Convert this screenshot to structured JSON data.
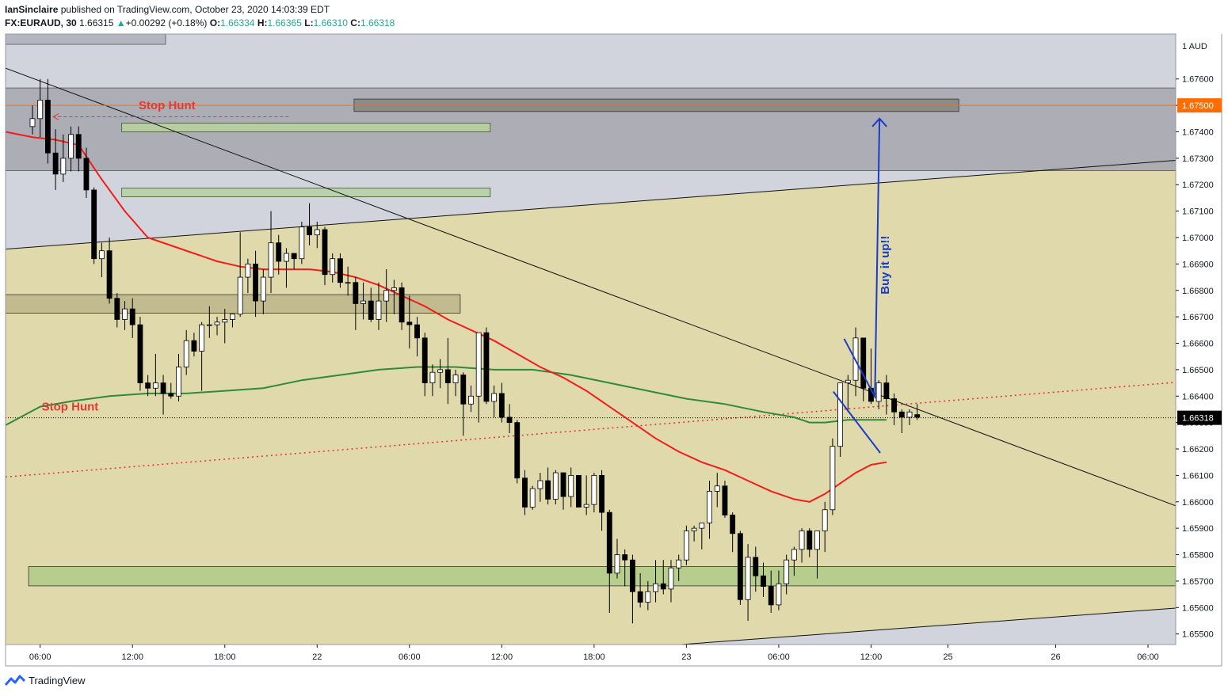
{
  "header": {
    "author": "IanSinclaire",
    "published_text": "published on TradingView.com, October 23, 2020 14:03:39 EDT",
    "symbol": "FX:EURAUD, 30",
    "last_price": "1.66315",
    "change_arrow": "▲",
    "change": "+0.00292 (+0.18%)",
    "o_label": "O:",
    "o_value": "1.66334",
    "h_label": "H:",
    "h_value": "1.66365",
    "l_label": "L:",
    "l_value": "1.66310",
    "c_label": "C:",
    "c_value": "1.66318"
  },
  "footer": {
    "brand": "TradingView"
  },
  "colors": {
    "background": "#d1d4dc",
    "channel": "#e0d9ab",
    "bull": "#ffffff",
    "bear": "#000000",
    "ema_fast": "#f21c1c",
    "ema_slow": "#2e8b3a",
    "annotation_red": "#e53935",
    "annotation_blue": "#1a3cc9"
  },
  "chart_data": {
    "type": "candlestick",
    "currency_label": "1 AUD",
    "y_ticks": [
      "1.67600",
      "1.67500",
      "1.67400",
      "1.67300",
      "1.67200",
      "1.67100",
      "1.67000",
      "1.66900",
      "1.66800",
      "1.66700",
      "1.66600",
      "1.66500",
      "1.66400",
      "1.66300",
      "1.66200",
      "1.66100",
      "1.66000",
      "1.65900",
      "1.65800",
      "1.65700",
      "1.65600",
      "1.65500"
    ],
    "ylim": [
      1.6546,
      1.6777
    ],
    "x_ticks": [
      {
        "label": "06:00",
        "bar": 1
      },
      {
        "label": "12:00",
        "bar": 13
      },
      {
        "label": "18:00",
        "bar": 25
      },
      {
        "label": "22",
        "bar": 37
      },
      {
        "label": "06:00",
        "bar": 49
      },
      {
        "label": "12:00",
        "bar": 61
      },
      {
        "label": "18:00",
        "bar": 73
      },
      {
        "label": "23",
        "bar": 85
      },
      {
        "label": "06:00",
        "bar": 97
      },
      {
        "label": "12:00",
        "bar": 109
      },
      {
        "label": "25",
        "bar": 119
      },
      {
        "label": "26",
        "bar": 133
      },
      {
        "label": "06:00",
        "bar": 145
      }
    ],
    "xlim": [
      -3.5,
      148.6
    ],
    "price_labels": [
      {
        "value": 1.675,
        "text": "1.67500",
        "color": "#ff6d00"
      },
      {
        "value": 1.66318,
        "text": "1.66318",
        "color": "#000000"
      }
    ],
    "candles": [
      [
        1.6742,
        1.675,
        1.6739,
        1.6745
      ],
      [
        1.6745,
        1.676,
        1.6738,
        1.6752
      ],
      [
        1.6752,
        1.676,
        1.6728,
        1.6732
      ],
      [
        1.6732,
        1.6741,
        1.6718,
        1.6724
      ],
      [
        1.6724,
        1.6739,
        1.6721,
        1.673
      ],
      [
        1.673,
        1.6742,
        1.6725,
        1.6739
      ],
      [
        1.6739,
        1.6742,
        1.6725,
        1.673
      ],
      [
        1.673,
        1.6734,
        1.6715,
        1.6718
      ],
      [
        1.6718,
        1.6719,
        1.669,
        1.6692
      ],
      [
        1.6692,
        1.6698,
        1.6685,
        1.6695
      ],
      [
        1.6695,
        1.67,
        1.6675,
        1.6677
      ],
      [
        1.6677,
        1.6679,
        1.6666,
        1.6669
      ],
      [
        1.6669,
        1.6676,
        1.6665,
        1.6673
      ],
      [
        1.6673,
        1.6677,
        1.6662,
        1.6667
      ],
      [
        1.6667,
        1.667,
        1.6642,
        1.6645
      ],
      [
        1.6645,
        1.6648,
        1.664,
        1.6643
      ],
      [
        1.6643,
        1.6656,
        1.664,
        1.6645
      ],
      [
        1.6645,
        1.6648,
        1.6633,
        1.6641
      ],
      [
        1.6641,
        1.6645,
        1.6639,
        1.664
      ],
      [
        1.664,
        1.6656,
        1.6638,
        1.6651
      ],
      [
        1.6651,
        1.6665,
        1.6648,
        1.6661
      ],
      [
        1.6661,
        1.6664,
        1.6655,
        1.6657
      ],
      [
        1.6657,
        1.6668,
        1.6642,
        1.6667
      ],
      [
        1.6667,
        1.6674,
        1.6662,
        1.6667
      ],
      [
        1.6667,
        1.667,
        1.6663,
        1.6668
      ],
      [
        1.6668,
        1.6673,
        1.666,
        1.6669
      ],
      [
        1.6669,
        1.6671,
        1.6666,
        1.6671
      ],
      [
        1.6671,
        1.6702,
        1.667,
        1.6685
      ],
      [
        1.6685,
        1.6692,
        1.6679,
        1.669
      ],
      [
        1.669,
        1.6695,
        1.667,
        1.6676
      ],
      [
        1.6676,
        1.6688,
        1.6671,
        1.6685
      ],
      [
        1.6685,
        1.671,
        1.6679,
        1.6698
      ],
      [
        1.6698,
        1.6701,
        1.6686,
        1.6691
      ],
      [
        1.6691,
        1.6696,
        1.6681,
        1.6694
      ],
      [
        1.6694,
        1.6694,
        1.6688,
        1.6692
      ],
      [
        1.6692,
        1.6706,
        1.669,
        1.6704
      ],
      [
        1.6704,
        1.6713,
        1.6697,
        1.6701
      ],
      [
        1.6701,
        1.6706,
        1.6696,
        1.6703
      ],
      [
        1.6703,
        1.6704,
        1.6682,
        1.6686
      ],
      [
        1.6686,
        1.6694,
        1.6683,
        1.6692
      ],
      [
        1.6692,
        1.6694,
        1.6681,
        1.6683
      ],
      [
        1.6683,
        1.6689,
        1.6678,
        1.6683
      ],
      [
        1.6683,
        1.6685,
        1.6665,
        1.6675
      ],
      [
        1.6675,
        1.6683,
        1.6669,
        1.6676
      ],
      [
        1.6676,
        1.6681,
        1.6668,
        1.6669
      ],
      [
        1.6669,
        1.6683,
        1.6665,
        1.6676
      ],
      [
        1.6676,
        1.6688,
        1.6668,
        1.668
      ],
      [
        1.668,
        1.6684,
        1.6671,
        1.6681
      ],
      [
        1.6681,
        1.6683,
        1.6665,
        1.6668
      ],
      [
        1.6668,
        1.6678,
        1.6658,
        1.6667
      ],
      [
        1.6667,
        1.667,
        1.6655,
        1.6662
      ],
      [
        1.6662,
        1.6664,
        1.664,
        1.6645
      ],
      [
        1.6645,
        1.6652,
        1.664,
        1.6649
      ],
      [
        1.6649,
        1.6654,
        1.6643,
        1.665
      ],
      [
        1.665,
        1.6662,
        1.6637,
        1.6645
      ],
      [
        1.6645,
        1.665,
        1.664,
        1.6648
      ],
      [
        1.6648,
        1.6649,
        1.6625,
        1.6637
      ],
      [
        1.6637,
        1.6644,
        1.6634,
        1.664
      ],
      [
        1.664,
        1.6664,
        1.663,
        1.6664
      ],
      [
        1.6664,
        1.6666,
        1.6637,
        1.6638
      ],
      [
        1.6638,
        1.6644,
        1.6632,
        1.6641
      ],
      [
        1.6641,
        1.6645,
        1.663,
        1.6632
      ],
      [
        1.6632,
        1.6637,
        1.6626,
        1.663
      ],
      [
        1.663,
        1.6631,
        1.6607,
        1.6609
      ],
      [
        1.6609,
        1.6612,
        1.6595,
        1.6598
      ],
      [
        1.6598,
        1.6606,
        1.6597,
        1.6605
      ],
      [
        1.6605,
        1.6611,
        1.66,
        1.6608
      ],
      [
        1.6608,
        1.6613,
        1.6599,
        1.6601
      ],
      [
        1.6601,
        1.6612,
        1.6599,
        1.6611
      ],
      [
        1.6611,
        1.6611,
        1.6597,
        1.6602
      ],
      [
        1.6602,
        1.6613,
        1.6598,
        1.661
      ],
      [
        1.661,
        1.661,
        1.6598,
        1.6598
      ],
      [
        1.6598,
        1.661,
        1.6595,
        1.6599
      ],
      [
        1.6599,
        1.6611,
        1.6596,
        1.661
      ],
      [
        1.661,
        1.6612,
        1.6589,
        1.6596
      ],
      [
        1.6596,
        1.6597,
        1.6558,
        1.6573
      ],
      [
        1.6573,
        1.6586,
        1.6571,
        1.658
      ],
      [
        1.658,
        1.6582,
        1.6568,
        1.6578
      ],
      [
        1.6578,
        1.658,
        1.6554,
        1.6566
      ],
      [
        1.6566,
        1.6573,
        1.656,
        1.6562
      ],
      [
        1.6562,
        1.657,
        1.6559,
        1.6566
      ],
      [
        1.6566,
        1.6578,
        1.6562,
        1.6569
      ],
      [
        1.6569,
        1.6578,
        1.6565,
        1.6567
      ],
      [
        1.6567,
        1.6578,
        1.6562,
        1.6575
      ],
      [
        1.6575,
        1.658,
        1.657,
        1.6578
      ],
      [
        1.6578,
        1.6591,
        1.6576,
        1.6589
      ],
      [
        1.6589,
        1.6591,
        1.6585,
        1.659
      ],
      [
        1.659,
        1.6592,
        1.6582,
        1.6592
      ],
      [
        1.6592,
        1.6608,
        1.6586,
        1.6604
      ],
      [
        1.6604,
        1.6611,
        1.6598,
        1.6606
      ],
      [
        1.6606,
        1.6608,
        1.6594,
        1.6595
      ],
      [
        1.6595,
        1.6596,
        1.6581,
        1.6588
      ],
      [
        1.6588,
        1.6589,
        1.6561,
        1.6563
      ],
      [
        1.6563,
        1.6584,
        1.6555,
        1.6579
      ],
      [
        1.6579,
        1.6583,
        1.6566,
        1.6572
      ],
      [
        1.6572,
        1.6577,
        1.6564,
        1.6568
      ],
      [
        1.6568,
        1.6574,
        1.6558,
        1.6561
      ],
      [
        1.6561,
        1.6574,
        1.6559,
        1.6569
      ],
      [
        1.6569,
        1.658,
        1.6565,
        1.6578
      ],
      [
        1.6578,
        1.6583,
        1.6572,
        1.6582
      ],
      [
        1.6582,
        1.659,
        1.6577,
        1.6589
      ],
      [
        1.6589,
        1.659,
        1.6579,
        1.6582
      ],
      [
        1.6582,
        1.6589,
        1.6571,
        1.6589
      ],
      [
        1.6589,
        1.66,
        1.6581,
        1.6597
      ],
      [
        1.6597,
        1.6624,
        1.6595,
        1.6621
      ],
      [
        1.6621,
        1.6645,
        1.6617,
        1.6645
      ],
      [
        1.6645,
        1.6648,
        1.6634,
        1.6646
      ],
      [
        1.6646,
        1.6666,
        1.664,
        1.6662
      ],
      [
        1.6662,
        1.6662,
        1.6638,
        1.6643
      ],
      [
        1.6643,
        1.6658,
        1.6637,
        1.6638
      ],
      [
        1.6638,
        1.6646,
        1.6635,
        1.6645
      ],
      [
        1.6645,
        1.6648,
        1.6633,
        1.6639
      ],
      [
        1.6639,
        1.6641,
        1.6629,
        1.6634
      ],
      [
        1.6634,
        1.6635,
        1.6626,
        1.6632
      ],
      [
        1.6632,
        1.6635,
        1.6629,
        1.6634
      ],
      [
        1.6633,
        1.6637,
        1.6631,
        1.6632
      ]
    ],
    "ema_fast": [
      [
        -3.5,
        1.674
      ],
      [
        0,
        1.6738
      ],
      [
        3,
        1.6737
      ],
      [
        6,
        1.6735
      ],
      [
        9,
        1.6722
      ],
      [
        12,
        1.671
      ],
      [
        15,
        1.67
      ],
      [
        18,
        1.6697
      ],
      [
        21,
        1.6694
      ],
      [
        24,
        1.6691
      ],
      [
        27,
        1.6689
      ],
      [
        30,
        1.6688
      ],
      [
        33,
        1.6688
      ],
      [
        36,
        1.6688
      ],
      [
        39,
        1.6687
      ],
      [
        42,
        1.6685
      ],
      [
        45,
        1.6682
      ],
      [
        48,
        1.6678
      ],
      [
        51,
        1.6674
      ],
      [
        54,
        1.6669
      ],
      [
        57,
        1.6665
      ],
      [
        60,
        1.6661
      ],
      [
        63,
        1.6656
      ],
      [
        66,
        1.6651
      ],
      [
        69,
        1.6647
      ],
      [
        72,
        1.6642
      ],
      [
        75,
        1.6636
      ],
      [
        78,
        1.663
      ],
      [
        81,
        1.6624
      ],
      [
        84,
        1.6619
      ],
      [
        87,
        1.6615
      ],
      [
        90,
        1.6612
      ],
      [
        93,
        1.6608
      ],
      [
        96,
        1.6604
      ],
      [
        99,
        1.6601
      ],
      [
        101,
        1.66
      ],
      [
        103,
        1.6603
      ],
      [
        105,
        1.6607
      ],
      [
        107,
        1.6611
      ],
      [
        109,
        1.6614
      ],
      [
        111,
        1.6615
      ]
    ],
    "ema_slow": [
      [
        -3.5,
        1.6629
      ],
      [
        1,
        1.6636
      ],
      [
        5,
        1.6638
      ],
      [
        10,
        1.664
      ],
      [
        15,
        1.6641
      ],
      [
        20,
        1.6641
      ],
      [
        25,
        1.6642
      ],
      [
        30,
        1.6643
      ],
      [
        35,
        1.6646
      ],
      [
        40,
        1.6648
      ],
      [
        45,
        1.665
      ],
      [
        50,
        1.6651
      ],
      [
        55,
        1.6651
      ],
      [
        60,
        1.665
      ],
      [
        65,
        1.665
      ],
      [
        70,
        1.6648
      ],
      [
        75,
        1.6645
      ],
      [
        80,
        1.6642
      ],
      [
        85,
        1.6639
      ],
      [
        90,
        1.6637
      ],
      [
        95,
        1.6634
      ],
      [
        99,
        1.6632
      ],
      [
        101,
        1.663
      ],
      [
        103,
        1.663
      ],
      [
        106,
        1.6631
      ],
      [
        109,
        1.6631
      ],
      [
        111,
        1.6631
      ]
    ]
  },
  "annotations": {
    "stop_hunt_top": "Stop Hunt",
    "stop_hunt_left": "Stop Hunt",
    "buy_text": "Buy it up!!"
  }
}
